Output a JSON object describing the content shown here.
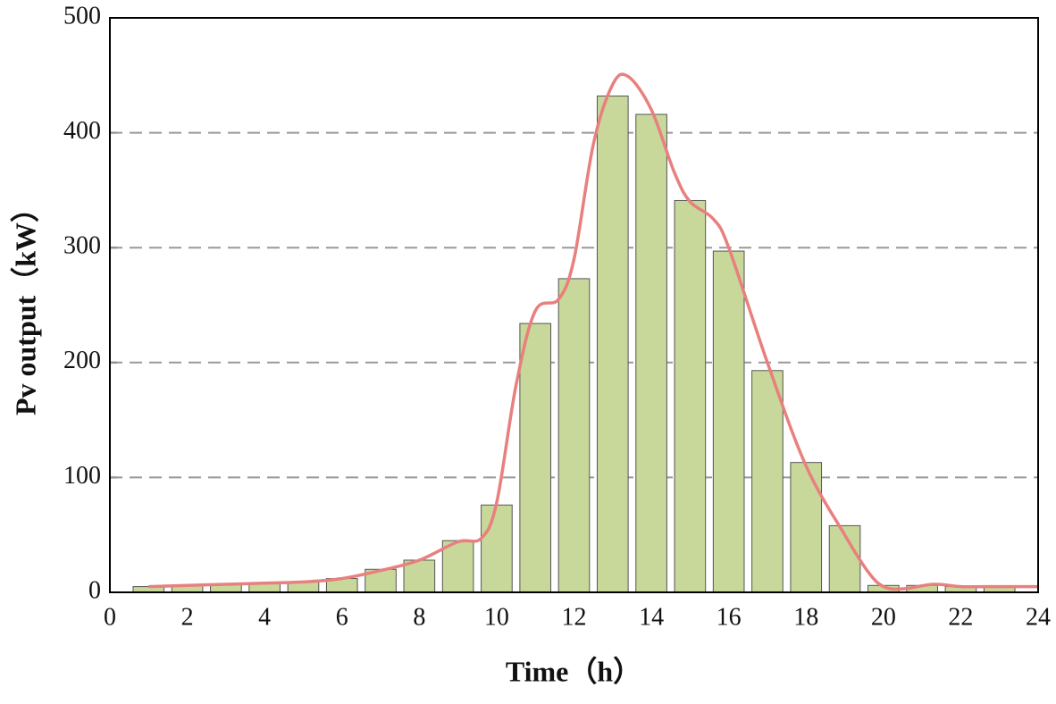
{
  "chart_data": {
    "type": "bar",
    "xlabel": "Time（h）",
    "ylabel": "Pv output（kW）",
    "xlim": [
      0,
      24
    ],
    "xticks": [
      0,
      2,
      4,
      6,
      8,
      10,
      12,
      14,
      16,
      18,
      20,
      22,
      24
    ],
    "ylim": [
      0,
      500
    ],
    "yticks": [
      0,
      100,
      200,
      300,
      400,
      500
    ],
    "grid": true,
    "series": [
      {
        "type": "bar",
        "color": "#c8d89a",
        "x": [
          1,
          2,
          3,
          4,
          5,
          6,
          7,
          8,
          9,
          10,
          11,
          12,
          13,
          14,
          15,
          16,
          17,
          18,
          19,
          20,
          21,
          22,
          23
        ],
        "values": [
          5,
          6,
          7,
          8,
          9,
          12,
          20,
          28,
          45,
          76,
          234,
          273,
          432,
          416,
          341,
          297,
          193,
          113,
          58,
          6,
          6,
          5,
          5
        ]
      },
      {
        "type": "line",
        "color": "#e8807e",
        "x": [
          1,
          2,
          3,
          4,
          5,
          6,
          7,
          8,
          9,
          9.6,
          10,
          10.5,
          11,
          11.6,
          12,
          12.5,
          13,
          13.4,
          14,
          14.6,
          15,
          15.6,
          16,
          17,
          18,
          19,
          19.6,
          20,
          20.5,
          21.3,
          22,
          23,
          24
        ],
        "values": [
          5,
          6,
          7,
          8,
          9,
          12,
          19,
          28,
          44,
          47,
          78,
          180,
          245,
          255,
          290,
          390,
          442,
          449,
          420,
          365,
          340,
          325,
          300,
          200,
          110,
          50,
          18,
          5,
          3,
          7,
          5,
          5,
          5
        ]
      }
    ]
  }
}
